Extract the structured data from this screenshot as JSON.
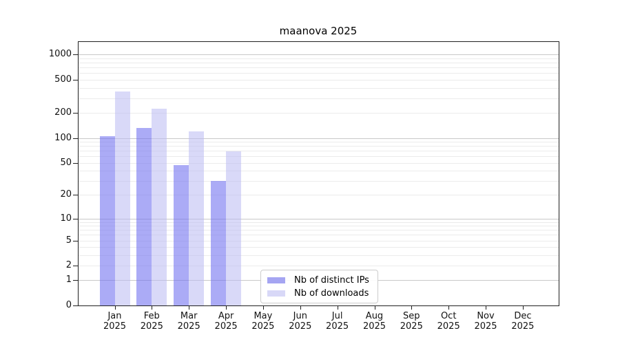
{
  "chart_data": {
    "type": "bar",
    "title": "maanova 2025",
    "categories": [
      "Jan",
      "Feb",
      "Mar",
      "Apr",
      "May",
      "Jun",
      "Jul",
      "Aug",
      "Sep",
      "Oct",
      "Nov",
      "Dec"
    ],
    "x_tick_year": "2025",
    "series": [
      {
        "name": "Nb of distinct IPs",
        "color": "#a5a5f2",
        "fill": "rgba(110,110,240,0.58)",
        "values": [
          105,
          133,
          47,
          30,
          null,
          null,
          null,
          null,
          null,
          null,
          null,
          null
        ]
      },
      {
        "name": "Nb of downloads",
        "color": "#d8d8f7",
        "fill": "rgba(185,185,243,0.55)",
        "values": [
          363,
          227,
          119,
          69,
          null,
          null,
          null,
          null,
          null,
          null,
          null,
          null
        ]
      }
    ],
    "yscale": "log10(1+y)",
    "ylim": [
      0,
      1460
    ],
    "yticks": [
      0,
      1,
      2,
      5,
      10,
      20,
      50,
      100,
      200,
      500,
      1000
    ],
    "grid_major": [
      1,
      10,
      100,
      1000
    ],
    "grid_minor": [
      2,
      3,
      4,
      5,
      6,
      7,
      8,
      9,
      20,
      30,
      40,
      50,
      60,
      70,
      80,
      90,
      200,
      300,
      400,
      500,
      600,
      700,
      800,
      900
    ],
    "grid": "on",
    "legend_position": "lower center",
    "colors": {
      "axis": "#1f1f1f",
      "grid_major": "#c8c8c8",
      "grid_minor": "#ebebeb",
      "legend_border": "#cccccc"
    }
  }
}
